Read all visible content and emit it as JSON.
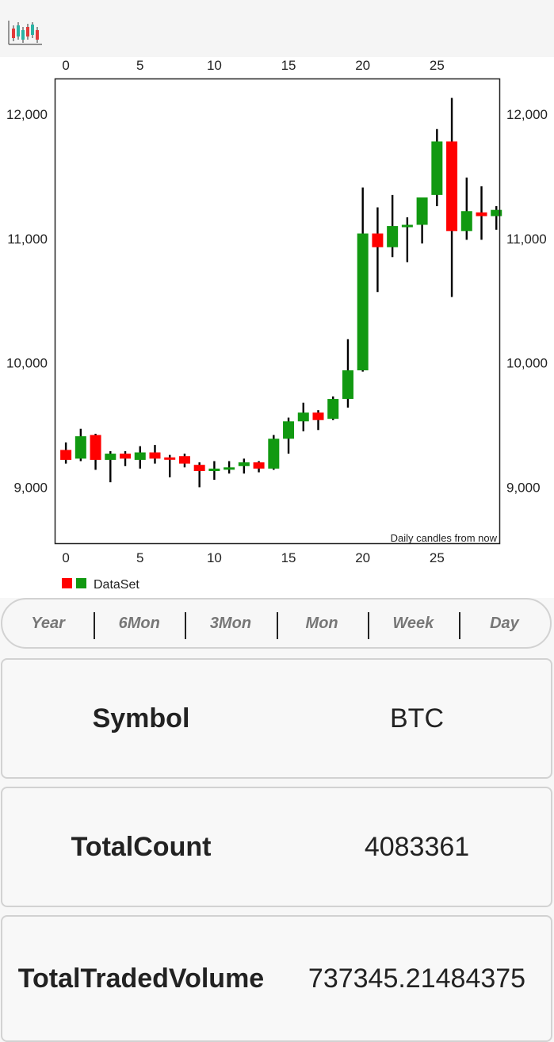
{
  "app": {
    "logo_icon": "candlestick-chart-icon"
  },
  "chart_data": {
    "type": "candlestick",
    "x_ticks_top": [
      "0",
      "5",
      "10",
      "15",
      "20",
      "25"
    ],
    "x_ticks_bottom": [
      "0",
      "5",
      "10",
      "15",
      "20",
      "25"
    ],
    "x_tick_values": [
      0,
      5,
      10,
      15,
      20,
      25
    ],
    "y_ticks_left": [
      "12,000",
      "11,000",
      "10,000",
      "9,000"
    ],
    "y_ticks_right": [
      "12,000",
      "11,000",
      "10,000",
      "9,000"
    ],
    "y_tick_values": [
      12000,
      11000,
      10000,
      9000
    ],
    "xlim": [
      -0.7,
      29.2
    ],
    "ylim": [
      8550,
      12280
    ],
    "description": "Daily candles from now",
    "legend": {
      "label": "DataSet",
      "colors": [
        "#ff0000",
        "#119911"
      ]
    },
    "increasing_color": "#119911",
    "decreasing_color": "#ff0000",
    "wick_color": "#000000",
    "grid": false,
    "candles": [
      {
        "x": 0,
        "open": 9300,
        "high": 9360,
        "low": 9190,
        "close": 9220
      },
      {
        "x": 1,
        "open": 9230,
        "high": 9470,
        "low": 9210,
        "close": 9410
      },
      {
        "x": 2,
        "open": 9420,
        "high": 9430,
        "low": 9140,
        "close": 9220
      },
      {
        "x": 3,
        "open": 9220,
        "high": 9290,
        "low": 9040,
        "close": 9270
      },
      {
        "x": 4,
        "open": 9270,
        "high": 9290,
        "low": 9170,
        "close": 9230
      },
      {
        "x": 5,
        "open": 9220,
        "high": 9330,
        "low": 9150,
        "close": 9280
      },
      {
        "x": 6,
        "open": 9280,
        "high": 9340,
        "low": 9190,
        "close": 9230
      },
      {
        "x": 7,
        "open": 9240,
        "high": 9260,
        "low": 9080,
        "close": 9230
      },
      {
        "x": 8,
        "open": 9250,
        "high": 9270,
        "low": 9160,
        "close": 9190
      },
      {
        "x": 9,
        "open": 9180,
        "high": 9200,
        "low": 9000,
        "close": 9130
      },
      {
        "x": 10,
        "open": 9130,
        "high": 9210,
        "low": 9060,
        "close": 9150
      },
      {
        "x": 11,
        "open": 9150,
        "high": 9210,
        "low": 9110,
        "close": 9160
      },
      {
        "x": 12,
        "open": 9170,
        "high": 9230,
        "low": 9110,
        "close": 9200
      },
      {
        "x": 13,
        "open": 9200,
        "high": 9210,
        "low": 9120,
        "close": 9150
      },
      {
        "x": 14,
        "open": 9150,
        "high": 9420,
        "low": 9140,
        "close": 9390
      },
      {
        "x": 15,
        "open": 9390,
        "high": 9560,
        "low": 9270,
        "close": 9530
      },
      {
        "x": 16,
        "open": 9530,
        "high": 9680,
        "low": 9450,
        "close": 9600
      },
      {
        "x": 17,
        "open": 9600,
        "high": 9620,
        "low": 9460,
        "close": 9540
      },
      {
        "x": 18,
        "open": 9550,
        "high": 9730,
        "low": 9540,
        "close": 9710
      },
      {
        "x": 19,
        "open": 9710,
        "high": 10190,
        "low": 9640,
        "close": 9940
      },
      {
        "x": 20,
        "open": 9940,
        "high": 11410,
        "low": 9930,
        "close": 11040
      },
      {
        "x": 21,
        "open": 11040,
        "high": 11250,
        "low": 10570,
        "close": 10930
      },
      {
        "x": 22,
        "open": 10930,
        "high": 11350,
        "low": 10850,
        "close": 11100
      },
      {
        "x": 23,
        "open": 11100,
        "high": 11170,
        "low": 10810,
        "close": 11110
      },
      {
        "x": 24,
        "open": 11110,
        "high": 11320,
        "low": 10960,
        "close": 11330
      },
      {
        "x": 25,
        "open": 11350,
        "high": 11880,
        "low": 11260,
        "close": 11780
      },
      {
        "x": 26,
        "open": 11780,
        "high": 12130,
        "low": 10530,
        "close": 11060
      },
      {
        "x": 27,
        "open": 11060,
        "high": 11490,
        "low": 10990,
        "close": 11220
      },
      {
        "x": 28,
        "open": 11210,
        "high": 11420,
        "low": 10990,
        "close": 11180
      },
      {
        "x": 29,
        "open": 11180,
        "high": 11260,
        "low": 11070,
        "close": 11230
      }
    ]
  },
  "range_tabs": [
    {
      "label": "Year"
    },
    {
      "label": "6Mon"
    },
    {
      "label": "3Mon"
    },
    {
      "label": "Mon"
    },
    {
      "label": "Week"
    },
    {
      "label": "Day"
    }
  ],
  "info": {
    "symbol": {
      "label": "Symbol",
      "value": "BTC"
    },
    "total_count": {
      "label": "TotalCount",
      "value": "4083361"
    },
    "total_traded_volume": {
      "label": "TotalTradedVolume",
      "value": "737345.21484375"
    }
  }
}
